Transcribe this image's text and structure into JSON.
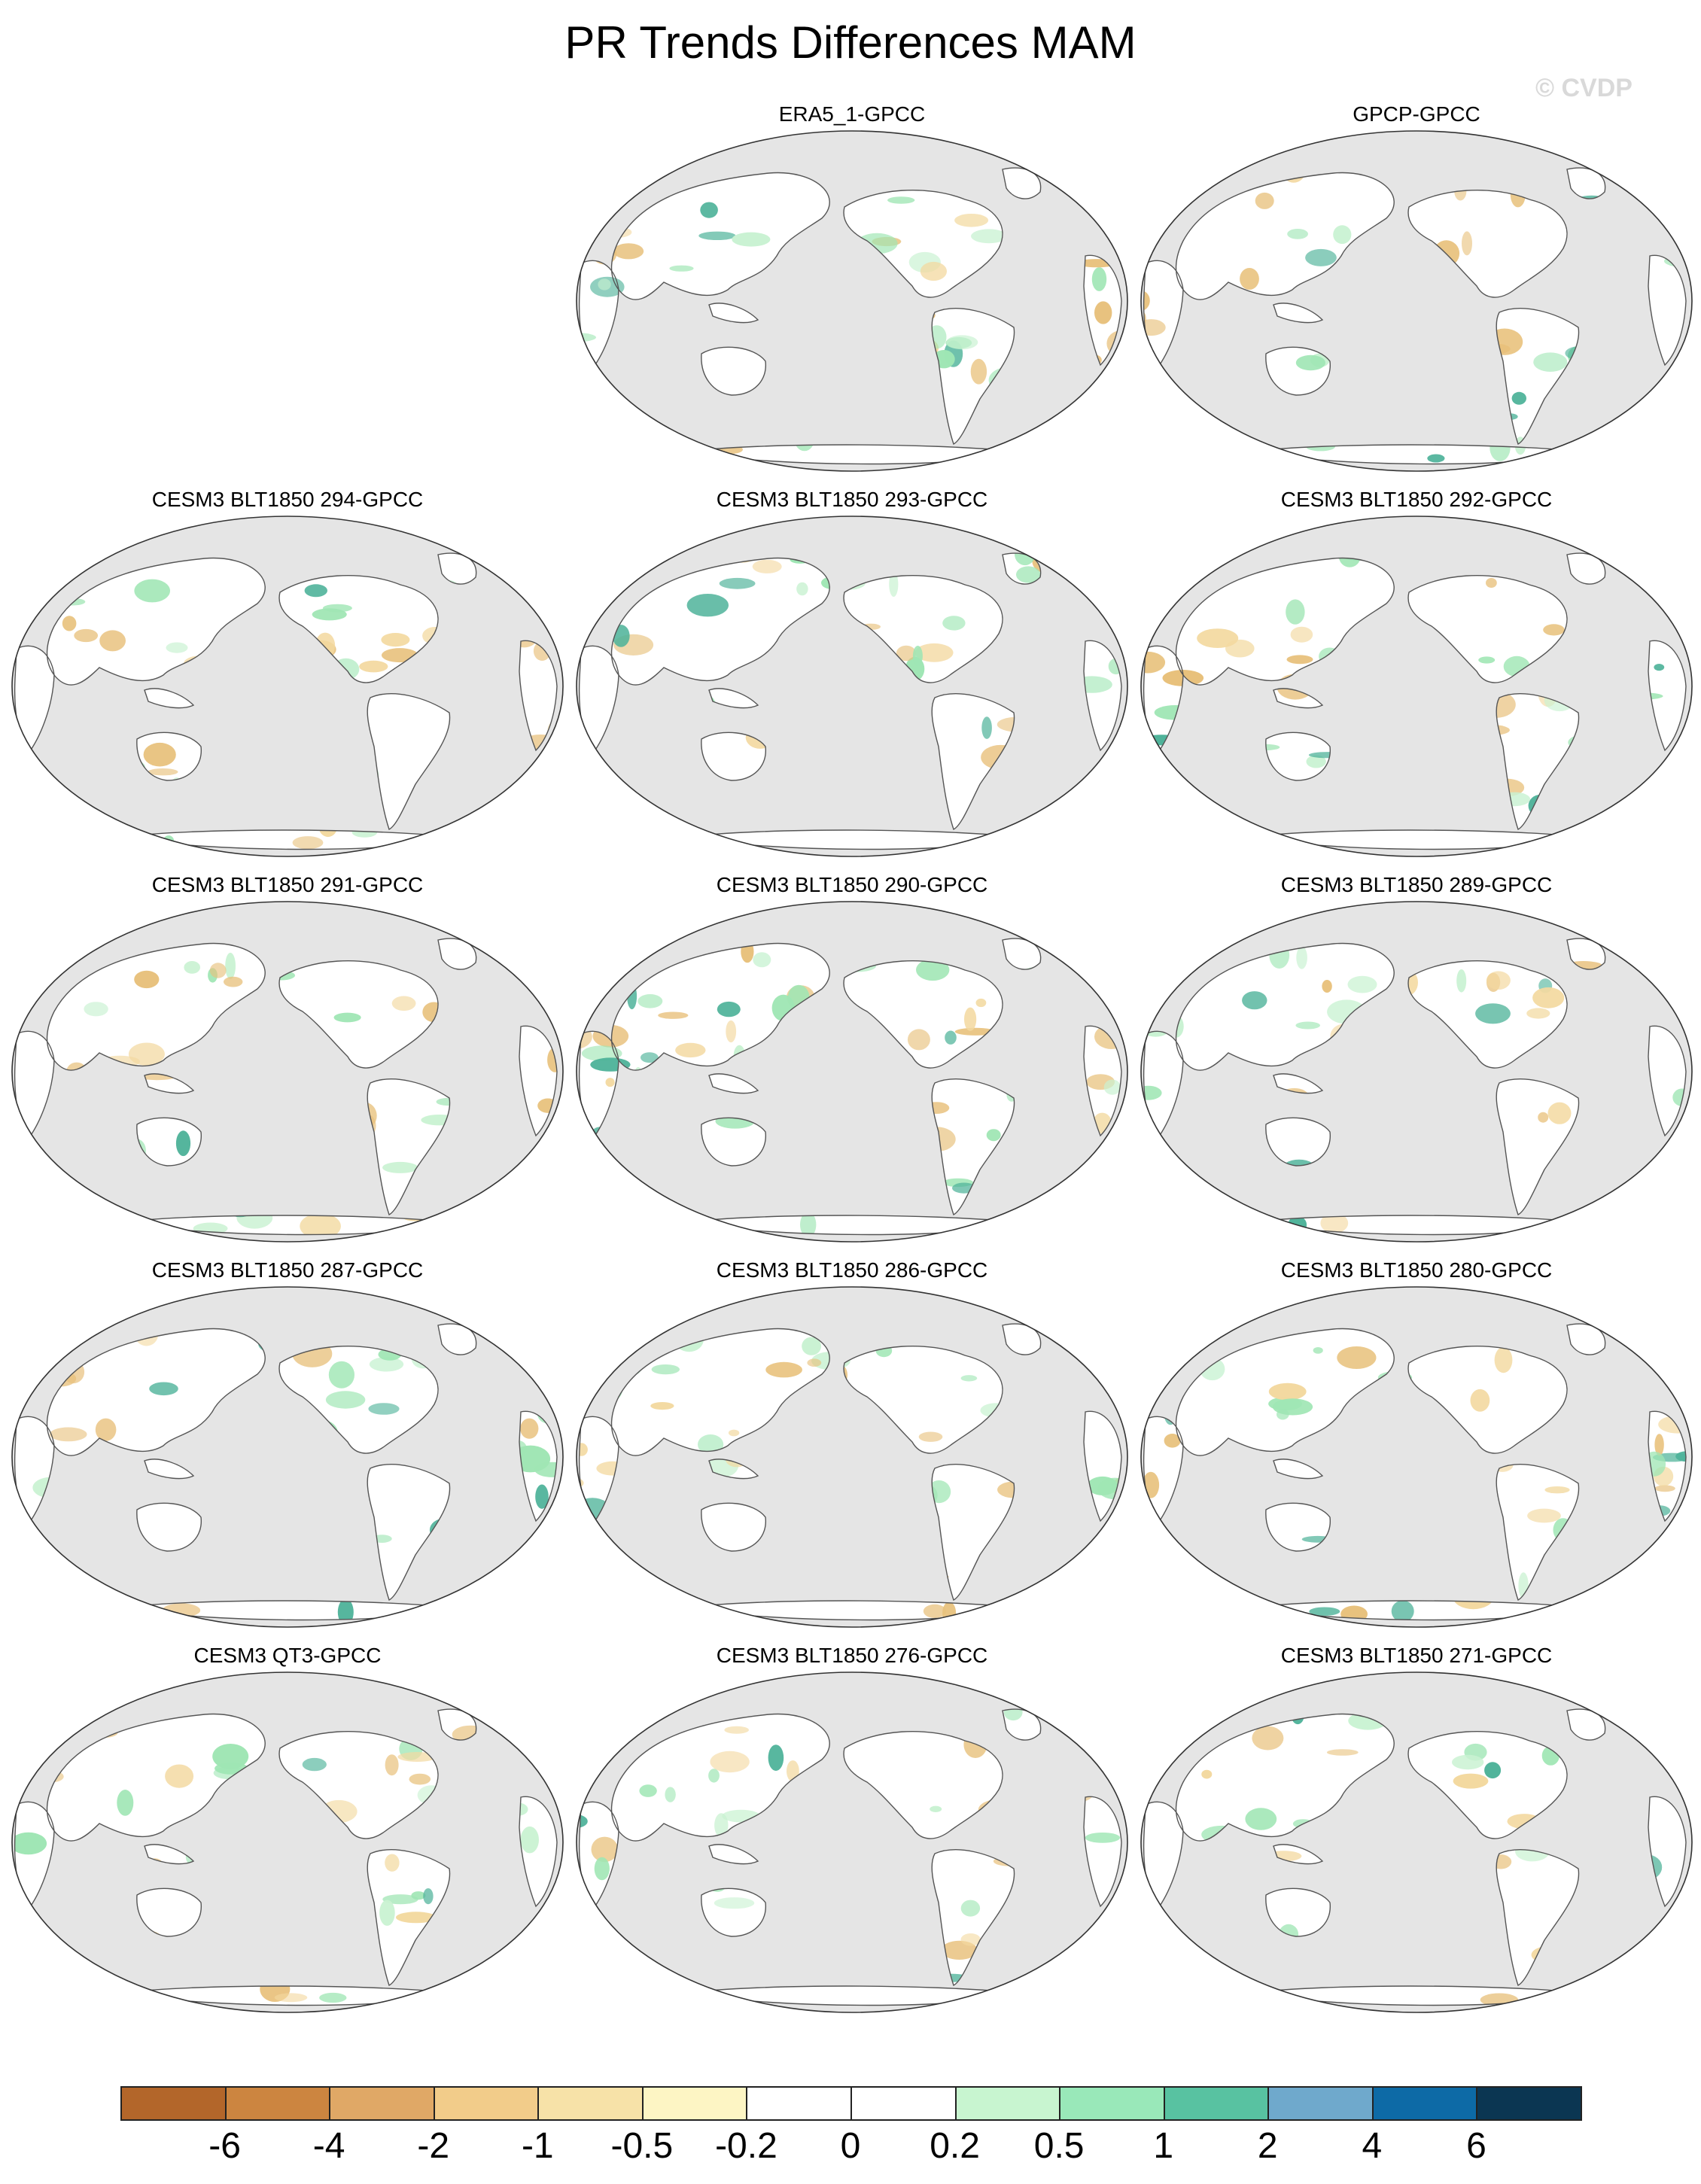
{
  "title": "PR Trends Differences MAM",
  "watermark": "© CVDP",
  "panels": [
    {
      "label": "ERA5_1-GPCC"
    },
    {
      "label": "GPCP-GPCC"
    },
    {
      "label": "CESM3 BLT1850 294-GPCC"
    },
    {
      "label": "CESM3 BLT1850 293-GPCC"
    },
    {
      "label": "CESM3 BLT1850 292-GPCC"
    },
    {
      "label": "CESM3 BLT1850 291-GPCC"
    },
    {
      "label": "CESM3 BLT1850 290-GPCC"
    },
    {
      "label": "CESM3 BLT1850 289-GPCC"
    },
    {
      "label": "CESM3 BLT1850 287-GPCC"
    },
    {
      "label": "CESM3 BLT1850 286-GPCC"
    },
    {
      "label": "CESM3 BLT1850 280-GPCC"
    },
    {
      "label": "CESM3 QT3-GPCC"
    },
    {
      "label": "CESM3 BLT1850 276-GPCC"
    },
    {
      "label": "CESM3 BLT1850 271-GPCC"
    }
  ],
  "colorbar": {
    "colors": [
      "#b3662a",
      "#cc8540",
      "#e0a866",
      "#f2cc8a",
      "#f7e2a8",
      "#fdf5c4",
      "#ffffff",
      "#ffffff",
      "#c8f5d0",
      "#99e8b9",
      "#58c2a1",
      "#6fa9cc",
      "#0d6aa6",
      "#0b3652"
    ],
    "labels": [
      "-6",
      "-4",
      "-2",
      "-1",
      "-0.5",
      "-0.2",
      "0",
      "0.2",
      "0.5",
      "1",
      "2",
      "4",
      "6"
    ]
  },
  "map_style": {
    "ocean": "#e5e5e5",
    "land": "#ffffff",
    "dry": "#e8c17c",
    "wet": "#9fe6b4",
    "strong_wet": "#4fb39a",
    "coast": "#555555"
  }
}
